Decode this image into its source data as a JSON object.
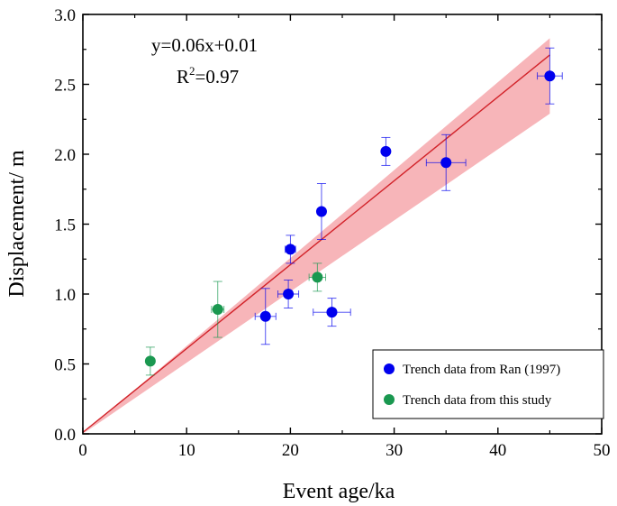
{
  "chart_data": {
    "type": "scatter",
    "xlabel": "Event age/ka",
    "ylabel": "Displacement/ m",
    "xlim": [
      0,
      50
    ],
    "ylim": [
      0,
      3.0
    ],
    "xticks": [
      0,
      10,
      20,
      30,
      40,
      50
    ],
    "yticks": [
      0.0,
      0.5,
      1.0,
      1.5,
      2.0,
      2.5,
      3.0
    ],
    "ytick_labels": [
      "0.0",
      "0.5",
      "1.0",
      "1.5",
      "2.0",
      "2.5",
      "3.0"
    ],
    "annotations": {
      "equation": "y=0.06x+0.01",
      "r2_prefix": "R",
      "r2_sup": "2",
      "r2_value": "=0.97"
    },
    "fit": {
      "slope": 0.06,
      "intercept": 0.01,
      "x_range": [
        0,
        45
      ],
      "band": {
        "upper": [
          [
            0,
            0
          ],
          [
            45,
            2.83
          ]
        ],
        "lower": [
          [
            0,
            0
          ],
          [
            45,
            2.29
          ]
        ]
      },
      "line_color": "#d2232a",
      "band_color": "#f5a3a7"
    },
    "series": [
      {
        "name": "Trench data from Ran (1997)",
        "color": "#0000ee",
        "points": [
          {
            "x": 17.6,
            "y": 0.84,
            "xerr": 1.0,
            "yerr": 0.2
          },
          {
            "x": 19.8,
            "y": 1.0,
            "xerr": 1.0,
            "yerr": 0.1
          },
          {
            "x": 20.0,
            "y": 1.32,
            "xerr": 0.5,
            "yerr": 0.1
          },
          {
            "x": 23.0,
            "y": 1.59,
            "xerr": 0.3,
            "yerr": 0.2
          },
          {
            "x": 24.0,
            "y": 0.87,
            "xerr": 1.8,
            "yerr": 0.1
          },
          {
            "x": 29.2,
            "y": 2.02,
            "xerr": 0.3,
            "yerr": 0.1
          },
          {
            "x": 35.0,
            "y": 1.94,
            "xerr": 1.9,
            "yerr": 0.2
          },
          {
            "x": 45.0,
            "y": 2.56,
            "xerr": 1.2,
            "yerr": 0.2
          }
        ]
      },
      {
        "name": "Trench data from this study",
        "color": "#1a9850",
        "points": [
          {
            "x": 6.5,
            "y": 0.52,
            "xerr": 0.2,
            "yerr": 0.1
          },
          {
            "x": 13.0,
            "y": 0.89,
            "xerr": 0.6,
            "yerr": 0.2
          },
          {
            "x": 22.6,
            "y": 1.12,
            "xerr": 0.8,
            "yerr": 0.1
          }
        ]
      }
    ],
    "legend": {
      "position": "bottom-right",
      "entries": [
        "Trench data from Ran (1997)",
        "Trench data from this study"
      ]
    }
  }
}
